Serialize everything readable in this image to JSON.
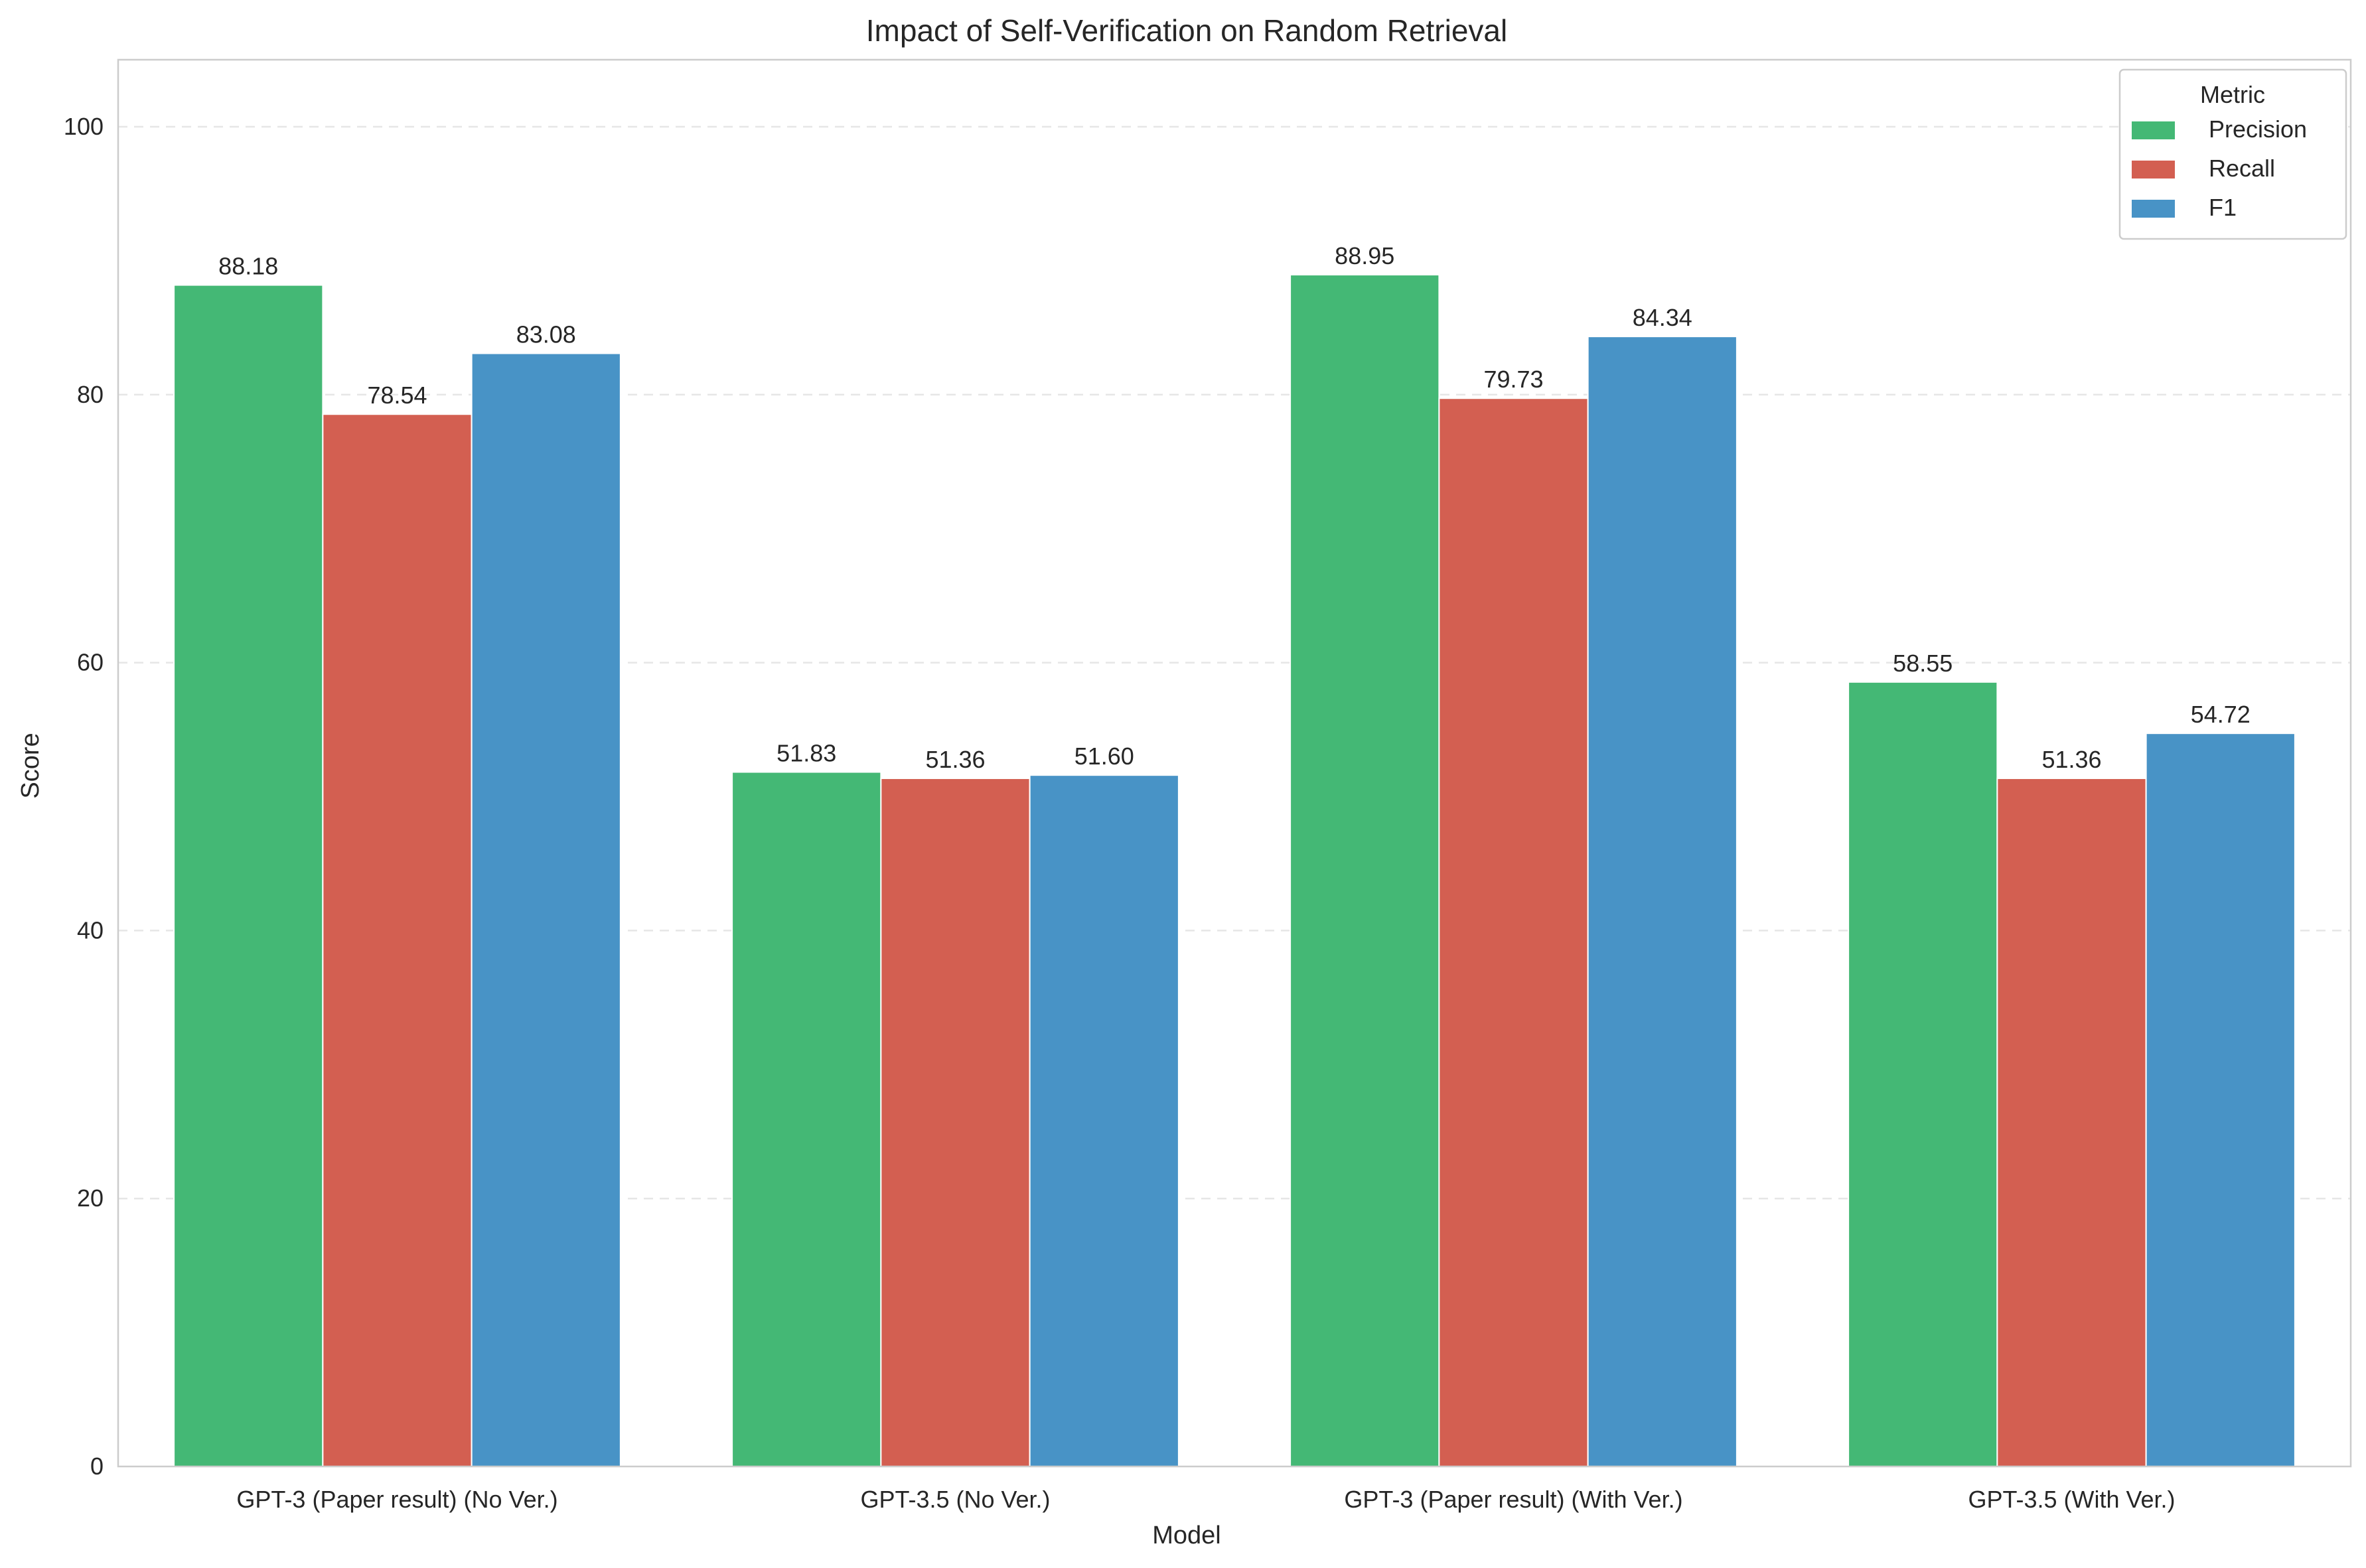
{
  "chart_data": {
    "type": "bar",
    "title": "Impact of Self-Verification on Random Retrieval",
    "xlabel": "Model",
    "ylabel": "Score",
    "ylim": [
      0,
      105
    ],
    "yticks": [
      0,
      20,
      40,
      60,
      80,
      100
    ],
    "grid": true,
    "legend": {
      "title": "Metric",
      "placement": "top-right"
    },
    "categories": [
      "GPT-3 (Paper result) (No Ver.)",
      "GPT-3.5 (No Ver.)",
      "GPT-3 (Paper result) (With Ver.)",
      "GPT-3.5 (With Ver.)"
    ],
    "series": [
      {
        "name": "Precision",
        "color": "#44b875",
        "values": [
          88.18,
          51.83,
          88.95,
          58.55
        ]
      },
      {
        "name": "Recall",
        "color": "#d35f51",
        "values": [
          78.54,
          51.36,
          79.73,
          51.36
        ]
      },
      {
        "name": "F1",
        "color": "#4893c6",
        "values": [
          83.08,
          51.6,
          84.34,
          54.72
        ]
      }
    ]
  }
}
